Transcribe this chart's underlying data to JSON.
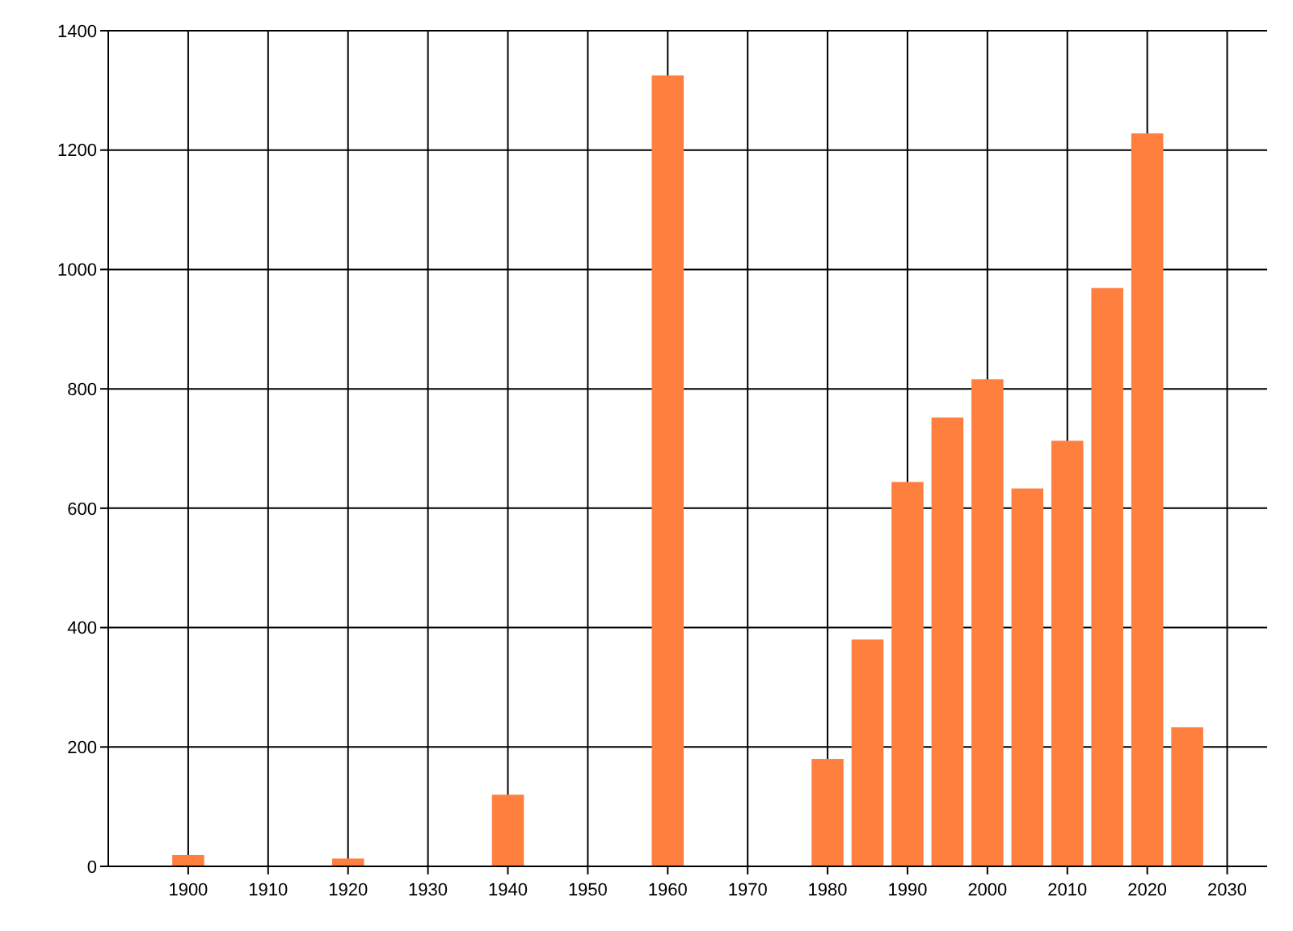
{
  "chart_data": {
    "type": "bar",
    "x": [
      1900,
      1920,
      1940,
      1960,
      1980,
      1985,
      1990,
      1995,
      2000,
      2005,
      2010,
      2015,
      2020,
      2025
    ],
    "values": [
      19,
      13,
      120,
      1325,
      180,
      380,
      644,
      752,
      816,
      633,
      713,
      969,
      1228,
      233
    ],
    "color": "#ff7f3f",
    "xlim": [
      1890,
      2035
    ],
    "xticks": [
      1900,
      1910,
      1920,
      1930,
      1940,
      1950,
      1960,
      1970,
      1980,
      1990,
      2000,
      2010,
      2020,
      2030
    ],
    "ylim": [
      0,
      1400
    ],
    "yticks": [
      0,
      200,
      400,
      600,
      800,
      1000,
      1200,
      1400
    ],
    "grid": true
  }
}
